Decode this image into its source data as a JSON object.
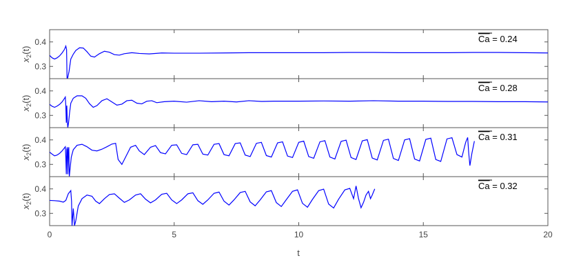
{
  "figure": {
    "xlabel": "t",
    "ylabel_base": "x",
    "ylabel_sub": "2",
    "ylabel_tail": "(t)"
  },
  "chart_data": {
    "type": "line",
    "title": "",
    "xlabel": "t",
    "ylabel": "x2(t)",
    "xlim": [
      0,
      20
    ],
    "ylim": [
      0.25,
      0.45
    ],
    "x_ticks": [
      0,
      5,
      10,
      15,
      20
    ],
    "y_ticks": [
      0.3,
      0.4
    ],
    "line_color": "#0000ff",
    "grid": false,
    "panels": [
      {
        "name": "Ca = 0.24",
        "ann_bar": "Ca",
        "ann_rest": " = 0.24",
        "points": [
          [
            0,
            0.345
          ],
          [
            0.1,
            0.335
          ],
          [
            0.2,
            0.33
          ],
          [
            0.3,
            0.335
          ],
          [
            0.4,
            0.343
          ],
          [
            0.5,
            0.355
          ],
          [
            0.6,
            0.37
          ],
          [
            0.65,
            0.383
          ],
          [
            0.68,
            0.37
          ],
          [
            0.7,
            0.25
          ],
          [
            0.72,
            0.25
          ],
          [
            0.78,
            0.28
          ],
          [
            0.85,
            0.33
          ],
          [
            0.95,
            0.35
          ],
          [
            1.05,
            0.365
          ],
          [
            1.2,
            0.376
          ],
          [
            1.35,
            0.375
          ],
          [
            1.5,
            0.36
          ],
          [
            1.65,
            0.342
          ],
          [
            1.8,
            0.338
          ],
          [
            2.0,
            0.352
          ],
          [
            2.2,
            0.362
          ],
          [
            2.4,
            0.358
          ],
          [
            2.6,
            0.348
          ],
          [
            2.8,
            0.346
          ],
          [
            3.0,
            0.352
          ],
          [
            3.3,
            0.356
          ],
          [
            3.6,
            0.353
          ],
          [
            4.0,
            0.351
          ],
          [
            4.5,
            0.355
          ],
          [
            5,
            0.354
          ],
          [
            6,
            0.354
          ],
          [
            7,
            0.355
          ],
          [
            8,
            0.356
          ],
          [
            9,
            0.356
          ],
          [
            10,
            0.356
          ],
          [
            11,
            0.356
          ],
          [
            12,
            0.357
          ],
          [
            13,
            0.357
          ],
          [
            14,
            0.356
          ],
          [
            15,
            0.356
          ],
          [
            16,
            0.356
          ],
          [
            17,
            0.357
          ],
          [
            18,
            0.357
          ],
          [
            19,
            0.356
          ],
          [
            20,
            0.355
          ]
        ]
      },
      {
        "name": "Ca = 0.28",
        "ann_bar": "Ca",
        "ann_rest": " = 0.28",
        "points": [
          [
            0,
            0.345
          ],
          [
            0.1,
            0.337
          ],
          [
            0.2,
            0.333
          ],
          [
            0.3,
            0.338
          ],
          [
            0.4,
            0.345
          ],
          [
            0.5,
            0.355
          ],
          [
            0.6,
            0.37
          ],
          [
            0.63,
            0.375
          ],
          [
            0.65,
            0.34
          ],
          [
            0.67,
            0.27
          ],
          [
            0.69,
            0.34
          ],
          [
            0.71,
            0.275
          ],
          [
            0.73,
            0.25
          ],
          [
            0.76,
            0.27
          ],
          [
            0.8,
            0.31
          ],
          [
            0.85,
            0.35
          ],
          [
            0.95,
            0.37
          ],
          [
            1.1,
            0.38
          ],
          [
            1.3,
            0.38
          ],
          [
            1.45,
            0.37
          ],
          [
            1.6,
            0.348
          ],
          [
            1.75,
            0.333
          ],
          [
            1.9,
            0.34
          ],
          [
            2.1,
            0.36
          ],
          [
            2.3,
            0.368
          ],
          [
            2.5,
            0.355
          ],
          [
            2.7,
            0.342
          ],
          [
            2.9,
            0.346
          ],
          [
            3.1,
            0.36
          ],
          [
            3.3,
            0.362
          ],
          [
            3.5,
            0.35
          ],
          [
            3.7,
            0.347
          ],
          [
            3.9,
            0.358
          ],
          [
            4.1,
            0.36
          ],
          [
            4.3,
            0.352
          ],
          [
            4.6,
            0.356
          ],
          [
            5,
            0.358
          ],
          [
            5.5,
            0.354
          ],
          [
            6,
            0.36
          ],
          [
            6.5,
            0.356
          ],
          [
            7,
            0.358
          ],
          [
            7.5,
            0.355
          ],
          [
            8,
            0.36
          ],
          [
            8.5,
            0.357
          ],
          [
            9,
            0.358
          ],
          [
            10,
            0.358
          ],
          [
            11,
            0.359
          ],
          [
            12,
            0.358
          ],
          [
            13,
            0.36
          ],
          [
            14,
            0.358
          ],
          [
            15,
            0.358
          ],
          [
            16,
            0.357
          ],
          [
            17,
            0.357
          ],
          [
            18,
            0.356
          ],
          [
            19,
            0.356
          ],
          [
            20,
            0.355
          ]
        ]
      },
      {
        "name": "Ca = 0.31",
        "ann_bar": "Ca",
        "ann_rest": " = 0.31",
        "points": [
          [
            0,
            0.35
          ],
          [
            0.1,
            0.342
          ],
          [
            0.2,
            0.335
          ],
          [
            0.3,
            0.338
          ],
          [
            0.4,
            0.345
          ],
          [
            0.5,
            0.355
          ],
          [
            0.6,
            0.368
          ],
          [
            0.63,
            0.372
          ],
          [
            0.65,
            0.33
          ],
          [
            0.67,
            0.26
          ],
          [
            0.69,
            0.36
          ],
          [
            0.71,
            0.37
          ],
          [
            0.73,
            0.26
          ],
          [
            0.75,
            0.36
          ],
          [
            0.77,
            0.37
          ],
          [
            0.79,
            0.25
          ],
          [
            0.82,
            0.28
          ],
          [
            0.87,
            0.33
          ],
          [
            0.95,
            0.36
          ],
          [
            1.1,
            0.378
          ],
          [
            1.3,
            0.382
          ],
          [
            1.5,
            0.372
          ],
          [
            1.7,
            0.358
          ],
          [
            1.9,
            0.355
          ],
          [
            2.1,
            0.362
          ],
          [
            2.3,
            0.372
          ],
          [
            2.5,
            0.383
          ],
          [
            2.65,
            0.386
          ],
          [
            2.75,
            0.32
          ],
          [
            2.9,
            0.3
          ],
          [
            3.05,
            0.33
          ],
          [
            3.25,
            0.37
          ],
          [
            3.45,
            0.378
          ],
          [
            3.6,
            0.355
          ],
          [
            3.8,
            0.34
          ],
          [
            4.05,
            0.37
          ],
          [
            4.25,
            0.377
          ],
          [
            4.45,
            0.348
          ],
          [
            4.65,
            0.343
          ],
          [
            4.9,
            0.378
          ],
          [
            5.1,
            0.38
          ],
          [
            5.3,
            0.345
          ],
          [
            5.5,
            0.34
          ],
          [
            5.75,
            0.38
          ],
          [
            5.95,
            0.382
          ],
          [
            6.15,
            0.342
          ],
          [
            6.35,
            0.338
          ],
          [
            6.6,
            0.382
          ],
          [
            6.8,
            0.385
          ],
          [
            7.0,
            0.34
          ],
          [
            7.2,
            0.335
          ],
          [
            7.45,
            0.385
          ],
          [
            7.65,
            0.388
          ],
          [
            7.85,
            0.338
          ],
          [
            8.05,
            0.332
          ],
          [
            8.3,
            0.386
          ],
          [
            8.5,
            0.39
          ],
          [
            8.7,
            0.336
          ],
          [
            8.9,
            0.33
          ],
          [
            9.15,
            0.388
          ],
          [
            9.35,
            0.392
          ],
          [
            9.55,
            0.334
          ],
          [
            9.75,
            0.328
          ],
          [
            10.0,
            0.39
          ],
          [
            10.2,
            0.395
          ],
          [
            10.4,
            0.332
          ],
          [
            10.6,
            0.325
          ],
          [
            10.85,
            0.392
          ],
          [
            11.05,
            0.397
          ],
          [
            11.25,
            0.33
          ],
          [
            11.45,
            0.322
          ],
          [
            11.7,
            0.394
          ],
          [
            11.9,
            0.399
          ],
          [
            12.1,
            0.328
          ],
          [
            12.3,
            0.32
          ],
          [
            12.55,
            0.396
          ],
          [
            12.75,
            0.401
          ],
          [
            12.95,
            0.326
          ],
          [
            13.15,
            0.318
          ],
          [
            13.4,
            0.398
          ],
          [
            13.6,
            0.403
          ],
          [
            13.8,
            0.324
          ],
          [
            14.0,
            0.316
          ],
          [
            14.25,
            0.4
          ],
          [
            14.45,
            0.405
          ],
          [
            14.65,
            0.322
          ],
          [
            14.85,
            0.314
          ],
          [
            15.1,
            0.402
          ],
          [
            15.3,
            0.407
          ],
          [
            15.5,
            0.32
          ],
          [
            15.7,
            0.312
          ],
          [
            15.95,
            0.404
          ],
          [
            16.15,
            0.409
          ],
          [
            16.35,
            0.34
          ],
          [
            16.55,
            0.33
          ],
          [
            16.7,
            0.39
          ],
          [
            16.78,
            0.41
          ],
          [
            16.82,
            0.35
          ],
          [
            16.87,
            0.295
          ],
          [
            16.95,
            0.345
          ],
          [
            17.05,
            0.395
          ]
        ]
      },
      {
        "name": "Ca = 0.32",
        "ann_bar": "Ca",
        "ann_rest": " = 0.32",
        "points": [
          [
            0,
            0.353
          ],
          [
            0.2,
            0.352
          ],
          [
            0.4,
            0.35
          ],
          [
            0.55,
            0.346
          ],
          [
            0.65,
            0.353
          ],
          [
            0.75,
            0.38
          ],
          [
            0.85,
            0.393
          ],
          [
            0.88,
            0.35
          ],
          [
            0.9,
            0.25
          ],
          [
            0.95,
            0.32
          ],
          [
            1.0,
            0.25
          ],
          [
            1.05,
            0.27
          ],
          [
            1.15,
            0.33
          ],
          [
            1.3,
            0.36
          ],
          [
            1.5,
            0.375
          ],
          [
            1.7,
            0.37
          ],
          [
            1.85,
            0.35
          ],
          [
            2.0,
            0.34
          ],
          [
            2.2,
            0.36
          ],
          [
            2.4,
            0.377
          ],
          [
            2.6,
            0.38
          ],
          [
            2.8,
            0.362
          ],
          [
            3.0,
            0.345
          ],
          [
            3.2,
            0.355
          ],
          [
            3.45,
            0.375
          ],
          [
            3.65,
            0.38
          ],
          [
            3.85,
            0.358
          ],
          [
            4.05,
            0.343
          ],
          [
            4.25,
            0.355
          ],
          [
            4.5,
            0.378
          ],
          [
            4.7,
            0.382
          ],
          [
            4.9,
            0.355
          ],
          [
            5.1,
            0.34
          ],
          [
            5.3,
            0.355
          ],
          [
            5.55,
            0.38
          ],
          [
            5.75,
            0.384
          ],
          [
            5.95,
            0.352
          ],
          [
            6.15,
            0.337
          ],
          [
            6.35,
            0.355
          ],
          [
            6.6,
            0.382
          ],
          [
            6.8,
            0.387
          ],
          [
            7.0,
            0.35
          ],
          [
            7.2,
            0.334
          ],
          [
            7.4,
            0.355
          ],
          [
            7.65,
            0.385
          ],
          [
            7.85,
            0.39
          ],
          [
            8.05,
            0.347
          ],
          [
            8.25,
            0.331
          ],
          [
            8.45,
            0.355
          ],
          [
            8.7,
            0.388
          ],
          [
            8.9,
            0.393
          ],
          [
            9.1,
            0.344
          ],
          [
            9.3,
            0.328
          ],
          [
            9.5,
            0.356
          ],
          [
            9.75,
            0.39
          ],
          [
            9.95,
            0.396
          ],
          [
            10.15,
            0.341
          ],
          [
            10.35,
            0.325
          ],
          [
            10.55,
            0.357
          ],
          [
            10.8,
            0.393
          ],
          [
            11.0,
            0.399
          ],
          [
            11.2,
            0.338
          ],
          [
            11.4,
            0.322
          ],
          [
            11.6,
            0.358
          ],
          [
            11.85,
            0.396
          ],
          [
            12.05,
            0.402
          ],
          [
            12.2,
            0.36
          ],
          [
            12.3,
            0.412
          ],
          [
            12.4,
            0.36
          ],
          [
            12.5,
            0.323
          ],
          [
            12.6,
            0.345
          ],
          [
            12.7,
            0.375
          ],
          [
            12.8,
            0.39
          ],
          [
            12.88,
            0.36
          ],
          [
            12.95,
            0.375
          ],
          [
            13.05,
            0.4
          ]
        ]
      }
    ]
  }
}
